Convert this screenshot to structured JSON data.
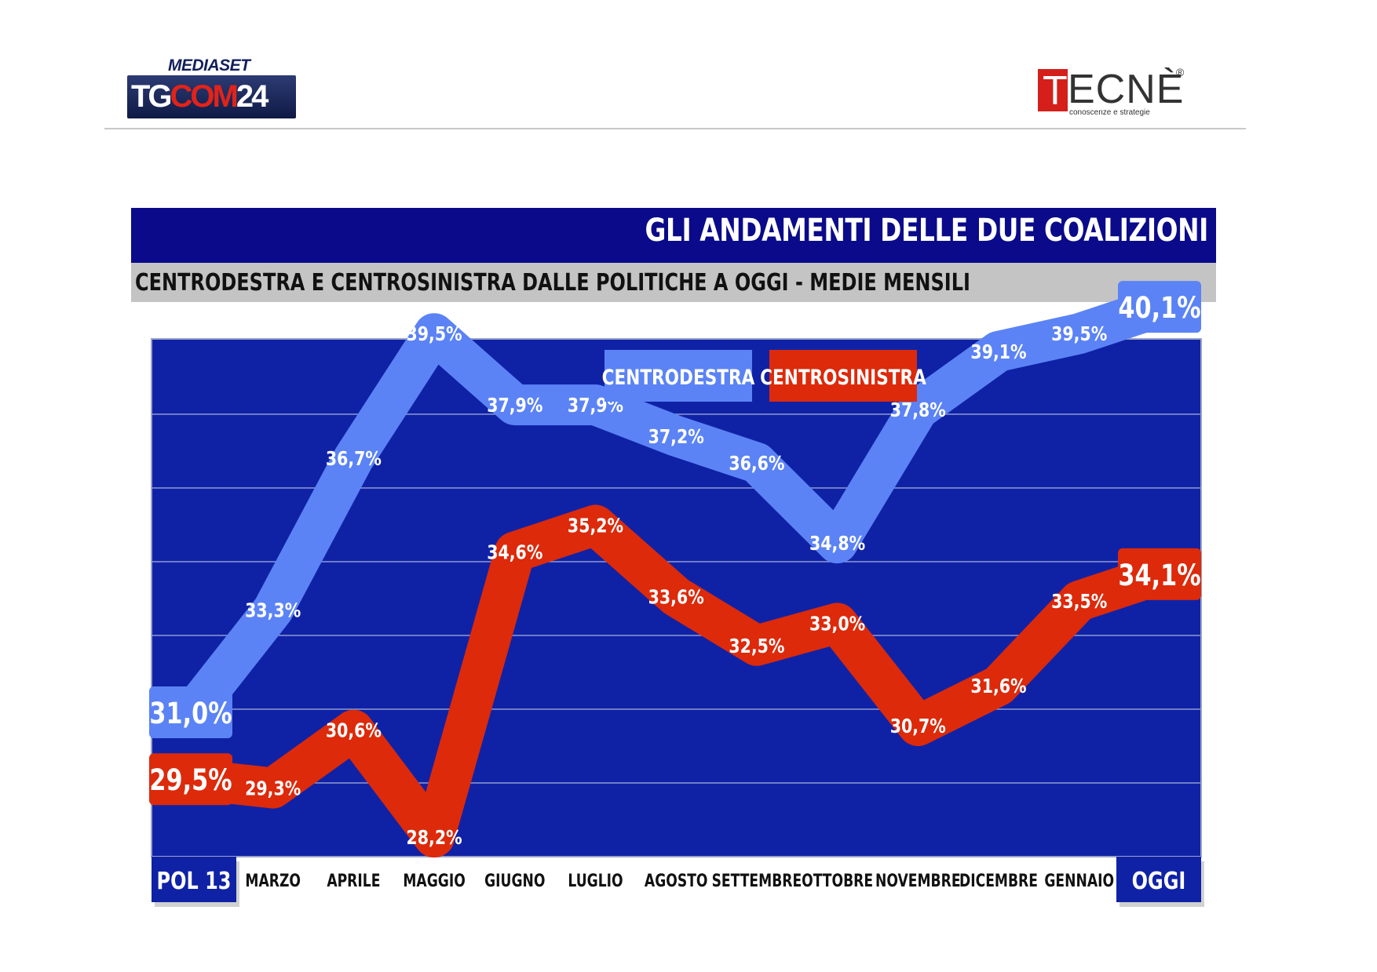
{
  "header": {
    "tgcom_logo": {
      "top": "MEDIASET",
      "tg": "TG",
      "com": "COM",
      "num": "24"
    },
    "tecne_logo": {
      "first": "T",
      "rest": "ECNÈ",
      "reg": "®",
      "tagline": "conoscenze e strategie"
    }
  },
  "title": "GLI ANDAMENTI DELLE DUE COALIZIONI",
  "subtitle": "CENTRODESTRA E CENTROSINISTRA DALLE POLITICHE A OGGI - MEDIE MENSILI",
  "colors": {
    "title_bar": "#0a0a8a",
    "subtitle_bar": "#c4c4c4",
    "plot_bg": "#0f22a6",
    "centrodestra": "#5b83f5",
    "centrosinistra": "#dc2a0b",
    "end_label_bg": "#0f22a6"
  },
  "chart_data": {
    "type": "line",
    "categories": [
      "POL 13",
      "MARZO",
      "APRILE",
      "MAGGIO",
      "GIUGNO",
      "LUGLIO",
      "AGOSTO",
      "SETTEMBRE",
      "OTTOBRE",
      "NOVEMBRE",
      "DICEMBRE",
      "GENNAIO",
      "OGGI"
    ],
    "series": [
      {
        "name": "CENTRODESTRA",
        "color": "#5b83f5",
        "values": [
          31.0,
          33.3,
          36.7,
          39.5,
          37.9,
          37.9,
          37.2,
          36.6,
          34.8,
          37.8,
          39.1,
          39.5,
          40.1
        ],
        "labels": [
          "31,0%",
          "33,3%",
          "36,7%",
          "39,5%",
          "37,9%",
          "37,9%",
          "37,2%",
          "36,6%",
          "34,8%",
          "37,8%",
          "39,1%",
          "39,5%",
          "40,1%"
        ]
      },
      {
        "name": "CENTROSINISTRA",
        "color": "#dc2a0b",
        "values": [
          29.5,
          29.3,
          30.6,
          28.2,
          34.6,
          35.2,
          33.6,
          32.5,
          33.0,
          30.7,
          31.6,
          33.5,
          34.1
        ],
        "labels": [
          "29,5%",
          "29,3%",
          "30,6%",
          "28,2%",
          "34,6%",
          "35,2%",
          "33,6%",
          "32,5%",
          "33,0%",
          "30,7%",
          "31,6%",
          "33,5%",
          "34,1%"
        ]
      }
    ],
    "highlighted_categories": [
      "POL 13",
      "OGGI"
    ],
    "grid": true,
    "legend_position": "top-right",
    "xlabel": "",
    "ylabel": ""
  }
}
